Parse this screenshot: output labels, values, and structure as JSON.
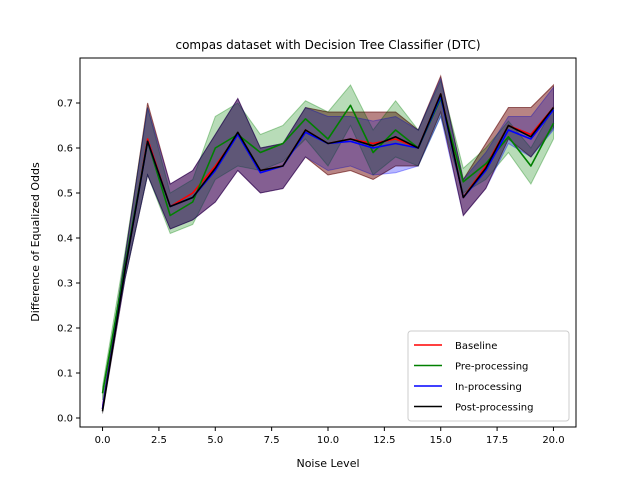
{
  "chart_data": {
    "type": "line",
    "title": "compas dataset with Decision Tree Classifier (DTC)",
    "xlabel": "Noise Level",
    "ylabel": "Difference of Equalized Odds",
    "xlim": [
      -1,
      21
    ],
    "ylim": [
      -0.02,
      0.8
    ],
    "xticks": [
      0.0,
      2.5,
      5.0,
      7.5,
      10.0,
      12.5,
      15.0,
      17.5,
      20.0
    ],
    "xtick_labels": [
      "0.0",
      "2.5",
      "5.0",
      "7.5",
      "10.0",
      "12.5",
      "15.0",
      "17.5",
      "20.0"
    ],
    "yticks": [
      0.0,
      0.1,
      0.2,
      0.3,
      0.4,
      0.5,
      0.6,
      0.7
    ],
    "ytick_labels": [
      "0.0",
      "0.1",
      "0.2",
      "0.3",
      "0.4",
      "0.5",
      "0.6",
      "0.7"
    ],
    "legend_position": "lower-right",
    "grid": false,
    "x": [
      0,
      1,
      2,
      3,
      4,
      5,
      6,
      7,
      8,
      9,
      10,
      11,
      12,
      13,
      14,
      15,
      16,
      17,
      18,
      19,
      20
    ],
    "series": [
      {
        "name": "Baseline",
        "color": "#ff0000",
        "values": [
          0.02,
          0.33,
          0.62,
          0.47,
          0.5,
          0.56,
          0.63,
          0.55,
          0.56,
          0.64,
          0.61,
          0.62,
          0.61,
          0.62,
          0.6,
          0.72,
          0.49,
          0.56,
          0.65,
          0.63,
          0.69
        ],
        "lower": [
          0.015,
          0.31,
          0.54,
          0.42,
          0.44,
          0.48,
          0.55,
          0.5,
          0.51,
          0.58,
          0.54,
          0.55,
          0.53,
          0.56,
          0.56,
          0.68,
          0.45,
          0.51,
          0.62,
          0.58,
          0.65
        ],
        "upper": [
          0.03,
          0.36,
          0.7,
          0.52,
          0.55,
          0.63,
          0.71,
          0.6,
          0.61,
          0.69,
          0.68,
          0.68,
          0.68,
          0.68,
          0.64,
          0.76,
          0.53,
          0.61,
          0.69,
          0.69,
          0.74
        ]
      },
      {
        "name": "Pre-processing",
        "color": "#008000",
        "values": [
          0.055,
          0.34,
          0.615,
          0.45,
          0.48,
          0.6,
          0.63,
          0.59,
          0.61,
          0.665,
          0.62,
          0.695,
          0.59,
          0.64,
          0.6,
          0.71,
          0.525,
          0.565,
          0.625,
          0.56,
          0.655
        ],
        "lower": [
          0.04,
          0.31,
          0.54,
          0.41,
          0.43,
          0.53,
          0.56,
          0.55,
          0.57,
          0.62,
          0.56,
          0.65,
          0.54,
          0.58,
          0.56,
          0.67,
          0.5,
          0.53,
          0.59,
          0.52,
          0.62
        ],
        "upper": [
          0.07,
          0.37,
          0.69,
          0.5,
          0.53,
          0.67,
          0.7,
          0.63,
          0.65,
          0.705,
          0.68,
          0.74,
          0.64,
          0.705,
          0.64,
          0.75,
          0.555,
          0.6,
          0.66,
          0.6,
          0.69
        ]
      },
      {
        "name": "In-processing",
        "color": "#0000ff",
        "values": [
          0.02,
          0.33,
          0.615,
          0.47,
          0.49,
          0.55,
          0.63,
          0.545,
          0.56,
          0.635,
          0.61,
          0.615,
          0.6,
          0.61,
          0.6,
          0.715,
          0.49,
          0.55,
          0.64,
          0.62,
          0.685
        ],
        "lower": [
          0.015,
          0.31,
          0.54,
          0.42,
          0.44,
          0.48,
          0.55,
          0.5,
          0.51,
          0.58,
          0.55,
          0.56,
          0.54,
          0.545,
          0.56,
          0.67,
          0.45,
          0.51,
          0.61,
          0.58,
          0.64
        ],
        "upper": [
          0.03,
          0.36,
          0.69,
          0.52,
          0.55,
          0.63,
          0.71,
          0.6,
          0.61,
          0.69,
          0.67,
          0.67,
          0.66,
          0.67,
          0.64,
          0.755,
          0.53,
          0.59,
          0.67,
          0.67,
          0.735
        ]
      },
      {
        "name": "Post-processing",
        "color": "#000000",
        "values": [
          0.015,
          0.33,
          0.615,
          0.47,
          0.49,
          0.555,
          0.635,
          0.55,
          0.56,
          0.64,
          0.61,
          0.62,
          0.605,
          0.625,
          0.6,
          0.72,
          0.49,
          0.555,
          0.65,
          0.625,
          0.69
        ],
        "lower": [
          0.01,
          0.31,
          0.54,
          0.42,
          0.44,
          0.48,
          0.55,
          0.5,
          0.51,
          0.58,
          0.54,
          0.55,
          0.53,
          0.56,
          0.56,
          0.68,
          0.45,
          0.51,
          0.62,
          0.58,
          0.645
        ],
        "upper": [
          0.025,
          0.36,
          0.7,
          0.52,
          0.55,
          0.63,
          0.71,
          0.6,
          0.61,
          0.69,
          0.68,
          0.68,
          0.68,
          0.68,
          0.64,
          0.76,
          0.53,
          0.61,
          0.69,
          0.69,
          0.74
        ]
      }
    ]
  }
}
